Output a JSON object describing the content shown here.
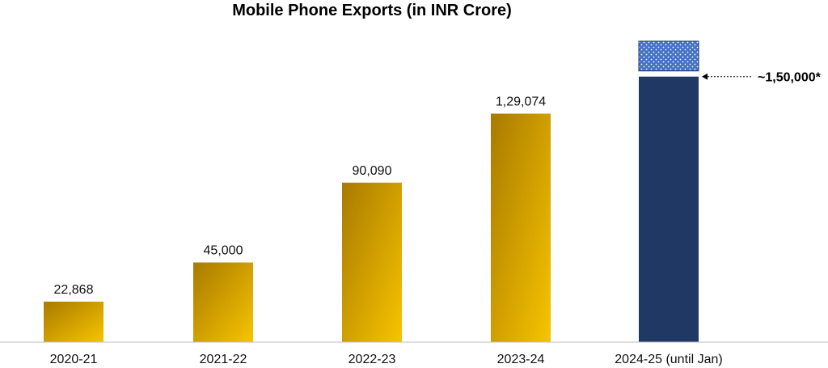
{
  "chart_data": {
    "type": "bar",
    "title": "Mobile Phone Exports (in INR Crore)",
    "xlabel": "",
    "ylabel": "",
    "categories": [
      "2020-21",
      "2021-22",
      "2022-23",
      "2023-24",
      "2024-25 (until Jan)"
    ],
    "values": [
      22868,
      45000,
      90090,
      129074,
      150000
    ],
    "value_labels": [
      "22,868",
      "45,000",
      "90,090",
      "1,29,074",
      ""
    ],
    "projection": {
      "category": "2024-25 (until Jan)",
      "upper_value": 170000,
      "annotation": "~1,50,000*"
    },
    "ylim": [
      0,
      175000
    ],
    "grid": false,
    "legend": "none",
    "colors": {
      "bar_gold_dark": "#a87a00",
      "bar_gold_light": "#f7c400",
      "bar_navy": "#203864",
      "projection_blue": "#4472c4",
      "axis": "#bfbfbf"
    }
  }
}
